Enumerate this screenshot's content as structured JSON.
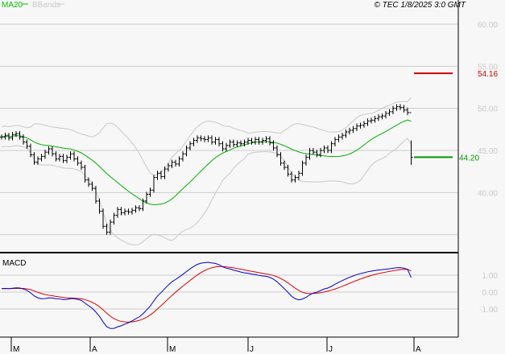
{
  "header": {
    "legend": [
      {
        "name": "MA20",
        "color": "#00c000"
      },
      {
        "name": "BBands",
        "color": "#c8c8c8"
      }
    ],
    "copyright": "© TEC 1/8/2025 3:0 GMT"
  },
  "chart_data": [
    {
      "type": "ohlc",
      "title": "",
      "y_ticks": [
        "60.00",
        "55.00",
        "50.00",
        "45.00",
        "40.00"
      ],
      "ylim": [
        33,
        62
      ],
      "x_ticks": [
        "M",
        "A",
        "M",
        "J",
        "J",
        "A"
      ],
      "grid": true,
      "closes": [
        46.6,
        46.8,
        46.5,
        46.9,
        47.0,
        46.6,
        46.0,
        45.5,
        44.5,
        43.6,
        44.0,
        44.3,
        44.8,
        45.2,
        44.6,
        44.0,
        44.3,
        43.8,
        44.2,
        44.6,
        44.0,
        43.5,
        43.0,
        41.5,
        41.0,
        40.5,
        39.0,
        37.8,
        36.0,
        35.3,
        36.5,
        37.3,
        38.0,
        37.6,
        37.8,
        37.7,
        37.9,
        38.2,
        38.1,
        39.0,
        39.8,
        40.3,
        41.8,
        42.3,
        41.9,
        42.8,
        43.2,
        43.6,
        43.4,
        44.0,
        44.6,
        45.3,
        45.8,
        46.2,
        46.5,
        46.4,
        46.3,
        46.5,
        46.0,
        46.3,
        45.8,
        45.2,
        45.6,
        46.0,
        45.7,
        45.9,
        45.8,
        46.0,
        46.2,
        46.0,
        46.3,
        46.0,
        46.2,
        46.4,
        45.9,
        45.3,
        44.5,
        43.5,
        43.0,
        42.2,
        41.5,
        41.8,
        42.3,
        43.5,
        44.2,
        45.0,
        44.8,
        44.5,
        45.0,
        45.3,
        45.0,
        45.8,
        46.3,
        46.6,
        46.8,
        47.2,
        47.4,
        47.6,
        47.9,
        48.0,
        48.2,
        48.5,
        48.6,
        48.8,
        49.0,
        49.1,
        49.4,
        49.6,
        50.0,
        50.2,
        50.1,
        49.8,
        49.5,
        44.2
      ],
      "last_bar": {
        "high": 46.2,
        "low": 43.3
      },
      "indicators": [
        "MA20",
        "BBands"
      ],
      "levels": [
        {
          "label": "54.16",
          "value": 54.16,
          "color": "#cc0000"
        },
        {
          "label": "44.20",
          "value": 44.2,
          "color": "#009900"
        }
      ]
    },
    {
      "type": "line",
      "title": "MACD",
      "y_ticks": [
        "1.00",
        "0.00",
        "-1.00"
      ],
      "ylim": [
        -2.5,
        2.3
      ],
      "series": [
        {
          "name": "MACD",
          "color": "#0000cc"
        },
        {
          "name": "Signal",
          "color": "#dd0000"
        }
      ]
    }
  ]
}
